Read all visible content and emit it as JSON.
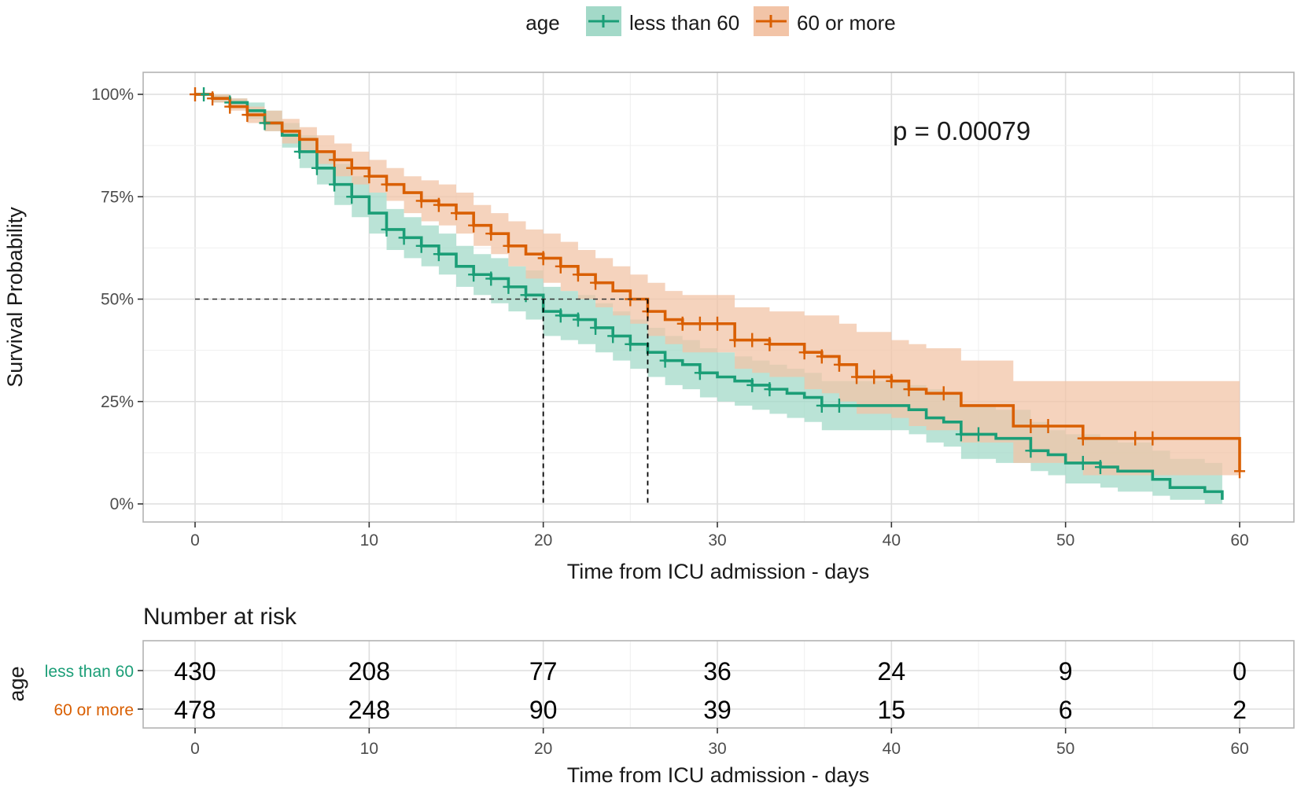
{
  "chart_data": {
    "type": "line",
    "subtype": "kaplan-meier",
    "legend": {
      "title": "age",
      "position": "top",
      "entries": [
        "less than 60",
        "60 or more"
      ]
    },
    "annotation": "p = 0.00079",
    "xlabel": "Time from ICU admission - days",
    "ylabel": "Survival Probability",
    "xlim": [
      0,
      60
    ],
    "ylim": [
      0,
      1
    ],
    "x_ticks": [
      0,
      10,
      20,
      30,
      40,
      50,
      60
    ],
    "y_ticks": [
      0,
      0.25,
      0.5,
      0.75,
      1.0
    ],
    "y_tick_labels": [
      "0%",
      "25%",
      "50%",
      "75%",
      "100%"
    ],
    "median_survival": {
      "level": 0.5,
      "times": [
        20,
        26
      ]
    },
    "series": [
      {
        "name": "less than 60",
        "color": "#1b9e77",
        "fill": "#a3d9c8",
        "times": [
          0,
          1,
          2,
          3,
          4,
          5,
          6,
          7,
          8,
          9,
          10,
          11,
          12,
          13,
          14,
          15,
          16,
          17,
          18,
          19,
          20,
          21,
          22,
          23,
          24,
          25,
          26,
          27,
          28,
          29,
          30,
          31,
          32,
          33,
          34,
          35,
          36,
          37,
          38,
          39,
          40,
          41,
          42,
          43,
          44,
          45,
          46,
          47,
          48,
          49,
          50,
          51,
          52,
          53,
          54,
          55,
          56,
          57,
          58,
          59
        ],
        "surv": [
          1.0,
          0.99,
          0.98,
          0.96,
          0.93,
          0.9,
          0.86,
          0.82,
          0.78,
          0.75,
          0.71,
          0.67,
          0.65,
          0.63,
          0.61,
          0.58,
          0.56,
          0.55,
          0.53,
          0.51,
          0.47,
          0.46,
          0.45,
          0.43,
          0.41,
          0.39,
          0.37,
          0.35,
          0.34,
          0.32,
          0.31,
          0.3,
          0.29,
          0.28,
          0.27,
          0.26,
          0.24,
          0.24,
          0.24,
          0.24,
          0.24,
          0.23,
          0.21,
          0.2,
          0.17,
          0.17,
          0.16,
          0.16,
          0.13,
          0.12,
          0.1,
          0.1,
          0.09,
          0.08,
          0.08,
          0.06,
          0.04,
          0.04,
          0.03,
          0.01
        ],
        "lower": [
          1.0,
          0.98,
          0.97,
          0.94,
          0.91,
          0.87,
          0.82,
          0.78,
          0.73,
          0.7,
          0.66,
          0.62,
          0.6,
          0.58,
          0.56,
          0.53,
          0.51,
          0.49,
          0.47,
          0.45,
          0.41,
          0.4,
          0.39,
          0.37,
          0.35,
          0.33,
          0.31,
          0.29,
          0.28,
          0.26,
          0.25,
          0.24,
          0.23,
          0.22,
          0.21,
          0.2,
          0.18,
          0.18,
          0.18,
          0.18,
          0.18,
          0.17,
          0.15,
          0.14,
          0.11,
          0.11,
          0.1,
          0.1,
          0.08,
          0.07,
          0.05,
          0.05,
          0.04,
          0.03,
          0.03,
          0.02,
          0.01,
          0.01,
          0.0,
          0.0
        ],
        "upper": [
          1.0,
          1.0,
          0.99,
          0.98,
          0.96,
          0.93,
          0.9,
          0.86,
          0.83,
          0.8,
          0.76,
          0.72,
          0.7,
          0.68,
          0.66,
          0.63,
          0.61,
          0.6,
          0.58,
          0.57,
          0.53,
          0.52,
          0.51,
          0.49,
          0.47,
          0.45,
          0.43,
          0.41,
          0.4,
          0.38,
          0.37,
          0.36,
          0.35,
          0.34,
          0.33,
          0.32,
          0.3,
          0.3,
          0.3,
          0.3,
          0.3,
          0.29,
          0.28,
          0.27,
          0.24,
          0.24,
          0.23,
          0.23,
          0.2,
          0.18,
          0.17,
          0.17,
          0.16,
          0.15,
          0.15,
          0.13,
          0.11,
          0.11,
          0.1,
          0.09
        ],
        "censor_times": [
          0.5,
          2,
          4,
          6,
          7,
          8,
          9,
          11,
          12,
          13,
          14,
          16,
          17,
          18,
          19,
          21,
          22,
          23,
          24,
          25,
          27,
          29,
          32,
          33,
          36,
          37,
          44,
          45,
          48,
          51,
          52
        ]
      },
      {
        "name": "60 or more",
        "color": "#d95f02",
        "fill": "#f2c4a7",
        "times": [
          0,
          1,
          2,
          3,
          4,
          5,
          6,
          7,
          8,
          9,
          10,
          11,
          12,
          13,
          14,
          15,
          16,
          17,
          18,
          19,
          20,
          21,
          22,
          23,
          24,
          25,
          26,
          27,
          28,
          29,
          30,
          31,
          32,
          33,
          34,
          35,
          36,
          37,
          38,
          39,
          40,
          41,
          42,
          43,
          44,
          45,
          46,
          47,
          48,
          49,
          50,
          51,
          52,
          53,
          54,
          55,
          56,
          57,
          58,
          59,
          60
        ],
        "surv": [
          1.0,
          0.99,
          0.97,
          0.95,
          0.93,
          0.91,
          0.89,
          0.86,
          0.84,
          0.82,
          0.8,
          0.78,
          0.76,
          0.74,
          0.73,
          0.71,
          0.68,
          0.66,
          0.63,
          0.61,
          0.6,
          0.58,
          0.56,
          0.54,
          0.52,
          0.5,
          0.47,
          0.45,
          0.44,
          0.44,
          0.44,
          0.4,
          0.4,
          0.39,
          0.39,
          0.37,
          0.36,
          0.34,
          0.31,
          0.31,
          0.3,
          0.28,
          0.27,
          0.27,
          0.24,
          0.24,
          0.24,
          0.19,
          0.19,
          0.19,
          0.19,
          0.16,
          0.16,
          0.16,
          0.16,
          0.16,
          0.16,
          0.16,
          0.16,
          0.16,
          0.08
        ],
        "lower": [
          1.0,
          0.98,
          0.96,
          0.93,
          0.91,
          0.88,
          0.86,
          0.83,
          0.8,
          0.78,
          0.76,
          0.74,
          0.71,
          0.69,
          0.68,
          0.66,
          0.63,
          0.61,
          0.58,
          0.55,
          0.54,
          0.52,
          0.5,
          0.48,
          0.46,
          0.44,
          0.41,
          0.39,
          0.37,
          0.37,
          0.37,
          0.33,
          0.32,
          0.31,
          0.31,
          0.28,
          0.27,
          0.25,
          0.22,
          0.22,
          0.21,
          0.19,
          0.18,
          0.18,
          0.15,
          0.15,
          0.15,
          0.1,
          0.1,
          0.1,
          0.1,
          0.07,
          0.07,
          0.07,
          0.07,
          0.07,
          0.07,
          0.07,
          0.07,
          0.07,
          0.07
        ],
        "upper": [
          1.0,
          1.0,
          0.99,
          0.97,
          0.96,
          0.94,
          0.92,
          0.9,
          0.88,
          0.86,
          0.84,
          0.82,
          0.8,
          0.79,
          0.78,
          0.76,
          0.73,
          0.71,
          0.69,
          0.67,
          0.66,
          0.64,
          0.62,
          0.6,
          0.58,
          0.56,
          0.54,
          0.52,
          0.51,
          0.51,
          0.51,
          0.48,
          0.48,
          0.47,
          0.47,
          0.46,
          0.46,
          0.44,
          0.42,
          0.42,
          0.4,
          0.39,
          0.38,
          0.38,
          0.35,
          0.35,
          0.35,
          0.3,
          0.3,
          0.3,
          0.3,
          0.3,
          0.3,
          0.3,
          0.3,
          0.3,
          0.3,
          0.3,
          0.3,
          0.3,
          0.3
        ],
        "censor_times": [
          0,
          1,
          2,
          3,
          8,
          9,
          10,
          11,
          13,
          14,
          15,
          16,
          17,
          18,
          20,
          21,
          22,
          23,
          25,
          26,
          28,
          29,
          30,
          31,
          32,
          33,
          35,
          36,
          37,
          38,
          39,
          40,
          41,
          43,
          48,
          49,
          51,
          54,
          55,
          60
        ]
      }
    ],
    "risk_table": {
      "title": "Number at risk",
      "ylabel": "age",
      "xlabel": "Time from ICU admission - days",
      "times": [
        0,
        10,
        20,
        30,
        40,
        50,
        60
      ],
      "rows": [
        {
          "name": "less than 60",
          "color": "#1b9e77",
          "values": [
            430,
            208,
            77,
            36,
            24,
            9,
            0
          ]
        },
        {
          "name": "60 or more",
          "color": "#d95f02",
          "values": [
            478,
            248,
            90,
            39,
            15,
            6,
            2
          ]
        }
      ]
    }
  }
}
